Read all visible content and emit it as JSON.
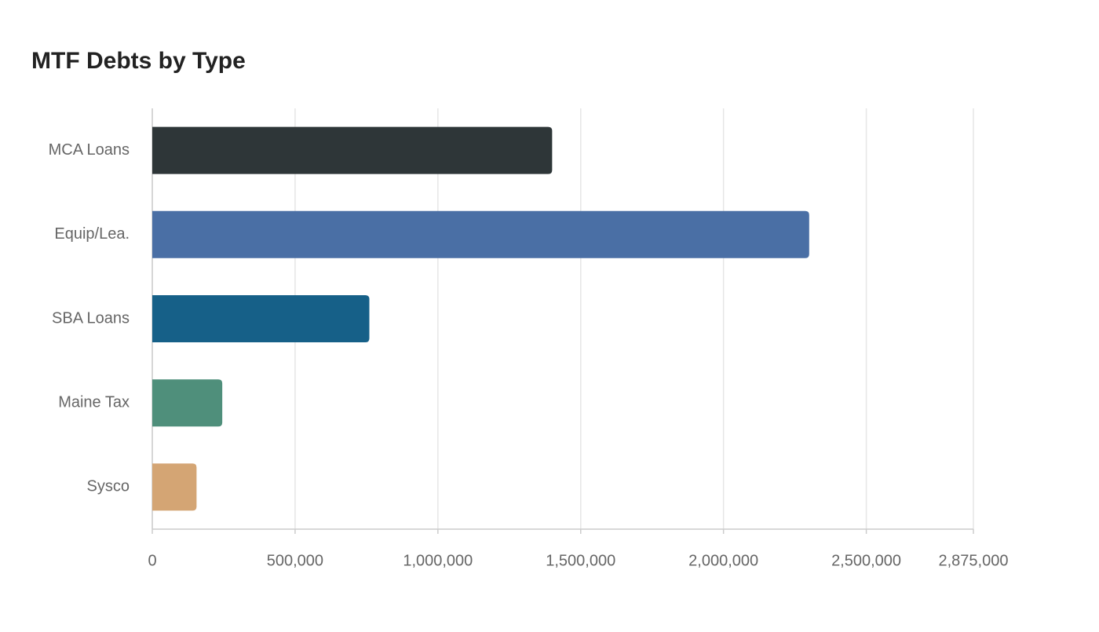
{
  "chart_data": {
    "type": "bar",
    "orientation": "horizontal",
    "title": "MTF Debts by Type",
    "categories": [
      "MCA Loans",
      "Equip/Lea.",
      "SBA Loans",
      "Maine Tax",
      "Sysco"
    ],
    "values": [
      1400000,
      2300000,
      760000,
      245000,
      155000
    ],
    "colors": [
      "#2e3638",
      "#4a6fa5",
      "#166088",
      "#4f8f7b",
      "#d4a574"
    ],
    "xlim": [
      0,
      2875000
    ],
    "xticks": [
      0,
      {
        "value": 500000,
        "label": "500,000"
      },
      {
        "value": 1000000,
        "label": "1,000,000"
      },
      {
        "value": 1500000,
        "label": "1,500,000"
      },
      {
        "value": 2000000,
        "label": "2,000,000"
      },
      {
        "value": 2500000,
        "label": "2,500,000"
      },
      {
        "value": 2875000,
        "label": "2,875,000"
      }
    ],
    "grid": true
  }
}
